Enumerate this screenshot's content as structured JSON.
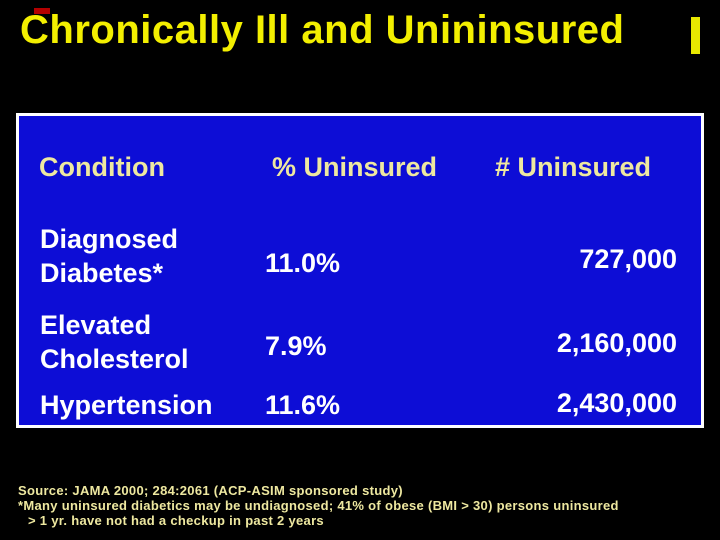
{
  "slide": {
    "title": "Chronically Ill and Unininsured",
    "background_color": "#000000",
    "title_color": "#f3ef00"
  },
  "table": {
    "background_color": "#0d0dd6",
    "border_color": "#ffffff",
    "header_text_color": "#eee8a0",
    "body_text_color": "#ffffff",
    "columns": [
      "Condition",
      "% Uninsured",
      "# Uninsured"
    ],
    "rows": [
      {
        "condition": "Diagnosed Diabetes*",
        "condition_lines": [
          "Diagnosed",
          "Diabetes*"
        ],
        "pct_uninsured": "11.0%",
        "num_uninsured": "727,000"
      },
      {
        "condition": "Elevated Cholesterol",
        "condition_lines": [
          "Elevated",
          "Cholesterol"
        ],
        "pct_uninsured": "7.9%",
        "num_uninsured": "2,160,000"
      },
      {
        "condition": "Hypertension",
        "condition_lines": [
          "Hypertension"
        ],
        "pct_uninsured": "11.6%",
        "num_uninsured": "2,430,000"
      }
    ]
  },
  "footer": {
    "text_color": "#eee8a0",
    "lines": [
      "Source: JAMA 2000; 284:2061 (ACP-ASIM sponsored study)",
      "*Many uninsured diabetics may be undiagnosed; 41% of obese (BMI > 30) persons uninsured",
      "> 1 yr. have not had a checkup in past 2 years"
    ]
  }
}
